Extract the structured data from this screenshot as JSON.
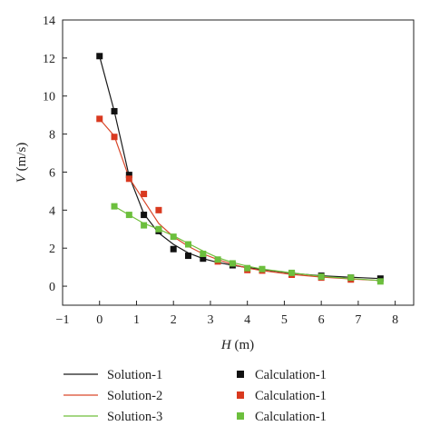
{
  "chart_data": {
    "type": "line",
    "xlabel_var": "H",
    "xlabel_unit": " (m)",
    "ylabel_var": "V",
    "ylabel_unit": " (m/s)",
    "xlim": [
      -1,
      8.5
    ],
    "ylim": [
      -1,
      14
    ],
    "xticks": [
      -1,
      0,
      1,
      2,
      3,
      4,
      5,
      6,
      7,
      8
    ],
    "yticks": [
      0,
      2,
      4,
      6,
      8,
      10,
      12,
      14
    ],
    "grid": false,
    "legend_position": "bottom",
    "series": [
      {
        "name": "Solution-1",
        "kind": "line",
        "color": "#1a1a1a",
        "x": [
          0,
          0.4,
          0.8,
          1.2,
          1.6,
          2.0,
          2.4,
          2.8,
          3.2,
          3.6,
          4.0,
          4.4,
          5.2,
          6.0,
          6.8,
          7.6
        ],
        "y": [
          12.1,
          9.2,
          5.8,
          3.8,
          2.8,
          2.2,
          1.75,
          1.45,
          1.25,
          1.1,
          0.98,
          0.88,
          0.68,
          0.55,
          0.47,
          0.4
        ]
      },
      {
        "name": "Solution-2",
        "kind": "line",
        "color": "#d9482b",
        "x": [
          0,
          0.4,
          0.8,
          1.2,
          1.6,
          2.0,
          2.4,
          2.8,
          3.2,
          3.6,
          4.0,
          4.4,
          5.2,
          6.0,
          6.8,
          7.6
        ],
        "y": [
          8.8,
          7.9,
          5.7,
          4.5,
          3.3,
          2.6,
          2.1,
          1.7,
          1.4,
          1.15,
          0.95,
          0.82,
          0.62,
          0.48,
          0.38,
          0.3
        ]
      },
      {
        "name": "Solution-3",
        "kind": "line",
        "color": "#6fbf3a",
        "x": [
          0.4,
          0.8,
          1.2,
          1.6,
          2.0,
          2.4,
          2.8,
          3.2,
          3.6,
          4.0,
          4.4,
          5.2,
          6.0,
          6.8,
          7.6
        ],
        "y": [
          4.2,
          3.75,
          3.3,
          3.0,
          2.65,
          2.25,
          1.85,
          1.5,
          1.25,
          1.05,
          0.9,
          0.7,
          0.52,
          0.4,
          0.3
        ]
      },
      {
        "name": "Calculation-1",
        "kind": "scatter",
        "color": "#111111",
        "x": [
          0,
          0.4,
          0.8,
          1.2,
          1.6,
          2.0,
          2.4,
          2.8,
          3.6,
          4.4,
          5.2,
          6.0,
          6.8,
          7.6
        ],
        "y": [
          12.1,
          9.2,
          5.85,
          3.75,
          2.9,
          1.95,
          1.6,
          1.45,
          1.1,
          0.85,
          0.65,
          0.55,
          0.45,
          0.4
        ]
      },
      {
        "name": "Calculation-1",
        "kind": "scatter",
        "color": "#d9391f",
        "x": [
          0,
          0.4,
          0.8,
          1.2,
          1.6,
          2.4,
          3.2,
          4.0,
          4.4,
          5.2,
          6.0,
          6.8
        ],
        "y": [
          8.8,
          7.85,
          5.65,
          4.85,
          4.0,
          2.2,
          1.3,
          0.85,
          0.82,
          0.6,
          0.45,
          0.35
        ]
      },
      {
        "name": "Calculation-1",
        "kind": "scatter",
        "color": "#6cbf3d",
        "x": [
          0.4,
          0.8,
          1.2,
          1.6,
          2.0,
          2.4,
          2.8,
          3.2,
          3.6,
          4.0,
          4.4,
          5.2,
          6.0,
          6.8,
          7.6
        ],
        "y": [
          4.2,
          3.75,
          3.2,
          3.0,
          2.6,
          2.2,
          1.7,
          1.4,
          1.2,
          0.95,
          0.9,
          0.7,
          0.5,
          0.45,
          0.25
        ]
      }
    ]
  }
}
